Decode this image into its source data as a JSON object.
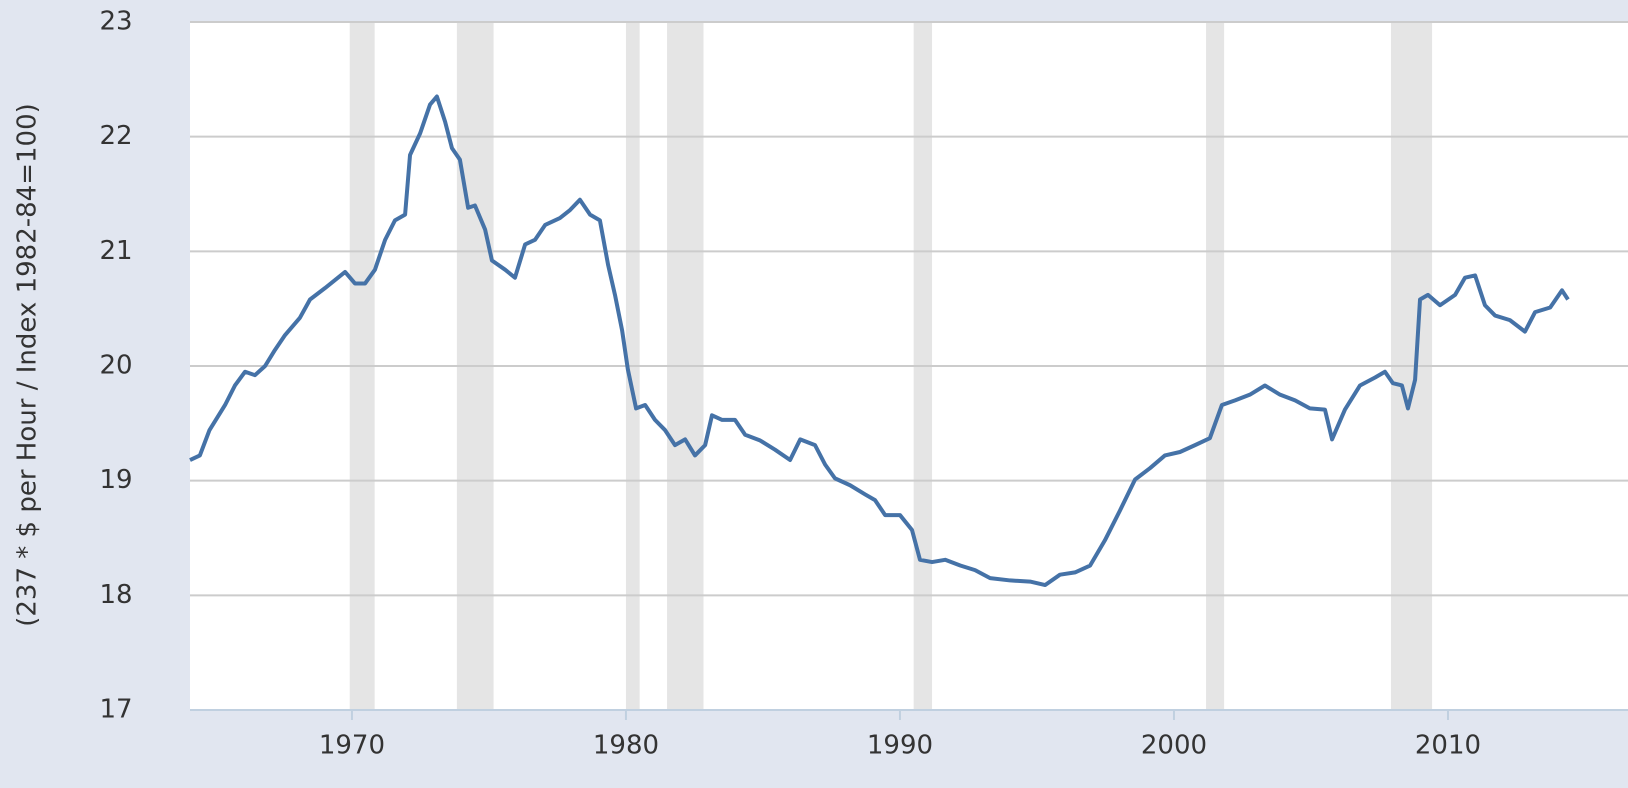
{
  "chart_data": {
    "type": "line",
    "y_label": "(237 * $ per Hour / Index 1982-84=100)",
    "xlim": [
      1964.09,
      2016.57
    ],
    "xticks": [
      1970,
      1980,
      1990,
      2000,
      2010
    ],
    "ylim": [
      17,
      23
    ],
    "yticks": [
      17,
      18,
      19,
      20,
      21,
      22,
      23
    ],
    "grid": true,
    "recession_color": "#e5e5e5",
    "recessions": [
      [
        1969.92,
        1970.83
      ],
      [
        1973.83,
        1975.17
      ],
      [
        1980.0,
        1980.5
      ],
      [
        1981.5,
        1982.83
      ],
      [
        1990.5,
        1991.17
      ],
      [
        2001.17,
        2001.83
      ],
      [
        2007.92,
        2009.42
      ]
    ],
    "x": [
      1964.09,
      1964.45,
      1964.8,
      1965.37,
      1965.73,
      1966.1,
      1966.46,
      1966.83,
      1967.19,
      1967.56,
      1968.1,
      1968.47,
      1969.02,
      1969.75,
      1970.11,
      1970.48,
      1970.84,
      1971.21,
      1971.57,
      1971.94,
      1972.12,
      1972.49,
      1972.85,
      1973.1,
      1973.4,
      1973.65,
      1973.94,
      1974.24,
      1974.49,
      1974.86,
      1975.11,
      1975.59,
      1975.95,
      1976.32,
      1976.68,
      1977.05,
      1977.59,
      1977.96,
      1978.32,
      1978.69,
      1979.05,
      1979.35,
      1979.6,
      1979.86,
      1980.07,
      1980.37,
      1980.7,
      1981.06,
      1981.43,
      1981.79,
      1982.16,
      1982.52,
      1982.89,
      1983.14,
      1983.51,
      1983.98,
      1984.35,
      1984.9,
      1985.44,
      1985.99,
      1986.36,
      1986.9,
      1987.27,
      1987.63,
      1988.18,
      1988.73,
      1989.09,
      1989.46,
      1990.0,
      1990.44,
      1990.73,
      1991.17,
      1991.65,
      1992.2,
      1992.74,
      1993.29,
      1994.02,
      1994.75,
      1995.3,
      1995.84,
      1996.39,
      1996.94,
      1997.48,
      1998.03,
      1998.58,
      1999.13,
      1999.67,
      2000.22,
      2000.77,
      2001.31,
      2001.75,
      2002.23,
      2002.77,
      2003.32,
      2003.87,
      2004.42,
      2004.96,
      2005.51,
      2005.77,
      2006.24,
      2006.79,
      2007.34,
      2007.7,
      2007.99,
      2008.32,
      2008.54,
      2008.8,
      2008.98,
      2009.27,
      2009.71,
      2010.26,
      2010.62,
      2010.99,
      2011.35,
      2011.72,
      2012.26,
      2012.81,
      2013.18,
      2013.73,
      2014.16,
      2014.38
    ],
    "series": [
      {
        "color": "#4572a7",
        "values": [
          19.18,
          19.22,
          19.44,
          19.66,
          19.83,
          19.95,
          19.92,
          20.0,
          20.14,
          20.27,
          20.42,
          20.58,
          20.68,
          20.82,
          20.72,
          20.72,
          20.84,
          21.1,
          21.27,
          21.32,
          21.84,
          22.03,
          22.28,
          22.35,
          22.13,
          21.9,
          21.8,
          21.38,
          21.4,
          21.19,
          20.92,
          20.84,
          20.77,
          21.06,
          21.1,
          21.23,
          21.29,
          21.36,
          21.45,
          21.32,
          21.27,
          20.88,
          20.62,
          20.31,
          19.97,
          19.63,
          19.66,
          19.53,
          19.44,
          19.31,
          19.36,
          19.22,
          19.31,
          19.57,
          19.53,
          19.53,
          19.4,
          19.35,
          19.27,
          19.18,
          19.36,
          19.31,
          19.14,
          19.02,
          18.96,
          18.88,
          18.83,
          18.7,
          18.7,
          18.57,
          18.31,
          18.29,
          18.31,
          18.26,
          18.22,
          18.15,
          18.13,
          18.12,
          18.09,
          18.18,
          18.2,
          18.26,
          18.48,
          18.74,
          19.01,
          19.11,
          19.22,
          19.25,
          19.31,
          19.37,
          19.66,
          19.7,
          19.75,
          19.83,
          19.75,
          19.7,
          19.63,
          19.62,
          19.36,
          19.62,
          19.83,
          19.9,
          19.95,
          19.85,
          19.83,
          19.63,
          19.88,
          20.58,
          20.62,
          20.53,
          20.62,
          20.77,
          20.79,
          20.53,
          20.44,
          20.4,
          20.3,
          20.47,
          20.51,
          20.66,
          20.58
        ]
      }
    ]
  }
}
